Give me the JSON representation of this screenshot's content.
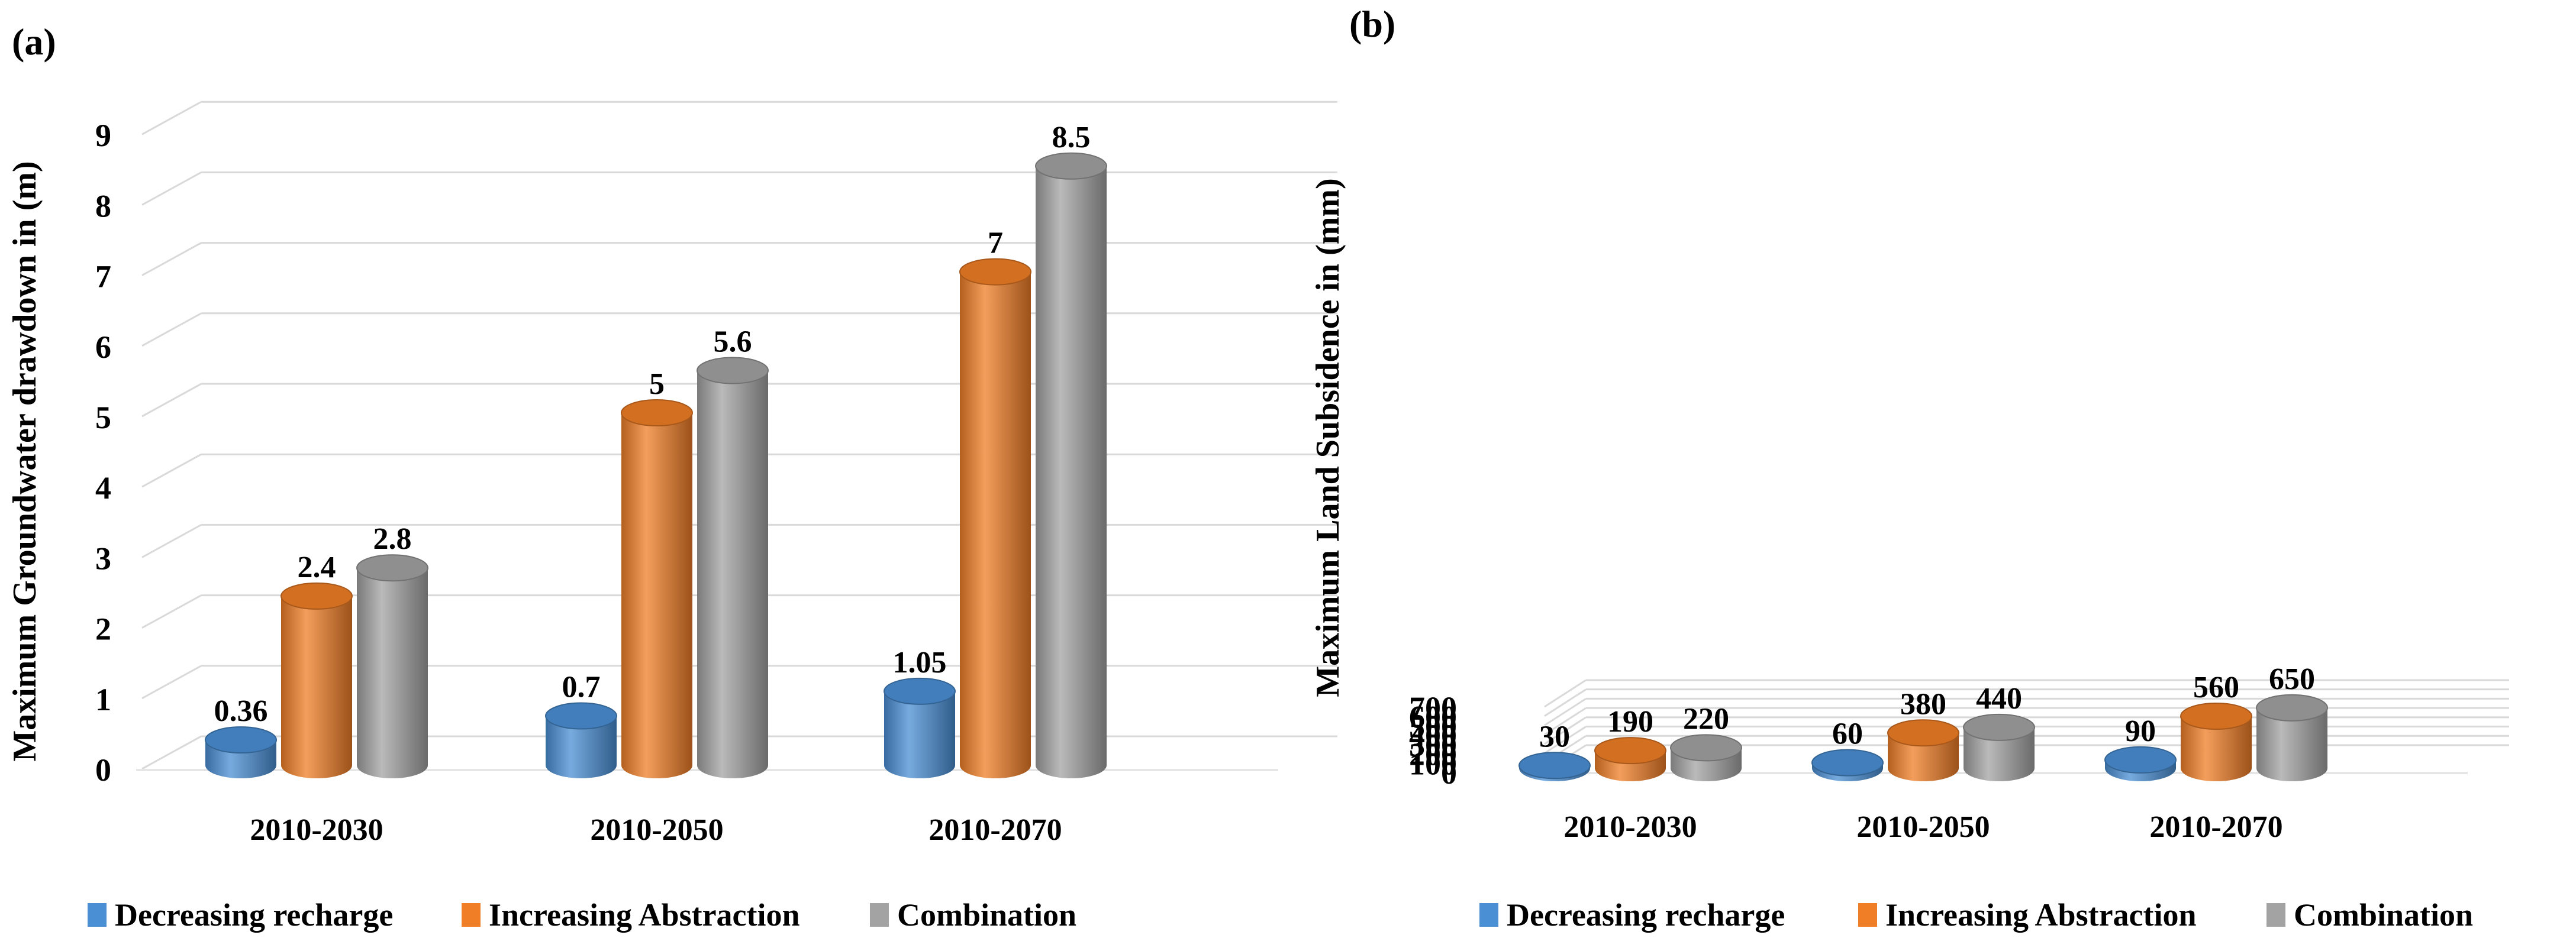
{
  "legend_labels": [
    "Decreasing recharge",
    "Increasing Abstraction",
    "Combination"
  ],
  "colors": {
    "decreasing_recharge": "#4a8fd4",
    "increasing_abstraction": "#f07e26",
    "combination": "#a3a3a3",
    "grid": "#d9d9d9",
    "text": "#000000"
  },
  "chart_data": [
    {
      "panel_label": "(a)",
      "type": "bar",
      "style": "3d-cylinder",
      "title": "",
      "xlabel": "",
      "ylabel": "Maximum Groundwater drawdown in (m)",
      "categories": [
        "2010-2030",
        "2010-2050",
        "2010-2070"
      ],
      "ylim": [
        0,
        9
      ],
      "yticks": [
        0,
        1,
        2,
        3,
        4,
        5,
        6,
        7,
        8,
        9
      ],
      "ytick_labels": [
        "0",
        "1",
        "2",
        "3",
        "4",
        "5",
        "6",
        "7",
        "8",
        "9"
      ],
      "grid": true,
      "legend": "bottom",
      "series": [
        {
          "name": "Decreasing recharge",
          "values": [
            0.36,
            0.7,
            1.05
          ],
          "labels": [
            "0.36",
            "0.7",
            "1.05"
          ]
        },
        {
          "name": "Increasing Abstraction",
          "values": [
            2.4,
            5,
            7
          ],
          "labels": [
            "2.4",
            "5",
            "7"
          ]
        },
        {
          "name": "Combination",
          "values": [
            2.8,
            5.6,
            8.5
          ],
          "labels": [
            "2.8",
            "5.6",
            "8.5"
          ]
        }
      ]
    },
    {
      "panel_label": "(b)",
      "type": "bar",
      "style": "3d-cylinder",
      "title": "",
      "xlabel": "",
      "ylabel": "Maximum Land Subsidence in (mm)",
      "categories": [
        "2010-2030",
        "2010-2050",
        "2010-2070"
      ],
      "ylim": [
        0,
        700
      ],
      "yticks": [
        0,
        100,
        200,
        300,
        400,
        500,
        600,
        700
      ],
      "ytick_labels": [
        "0",
        "100",
        "200",
        "300",
        "400",
        "500",
        "600",
        "700"
      ],
      "grid": true,
      "legend": "bottom",
      "series": [
        {
          "name": "Decreasing recharge",
          "values": [
            30,
            60,
            90
          ],
          "labels": [
            "30",
            "60",
            "90"
          ]
        },
        {
          "name": "Increasing Abstraction",
          "values": [
            190,
            380,
            560
          ],
          "labels": [
            "190",
            "380",
            "560"
          ]
        },
        {
          "name": "Combination",
          "values": [
            220,
            440,
            650
          ],
          "labels": [
            "220",
            "440",
            "650"
          ]
        }
      ]
    }
  ]
}
